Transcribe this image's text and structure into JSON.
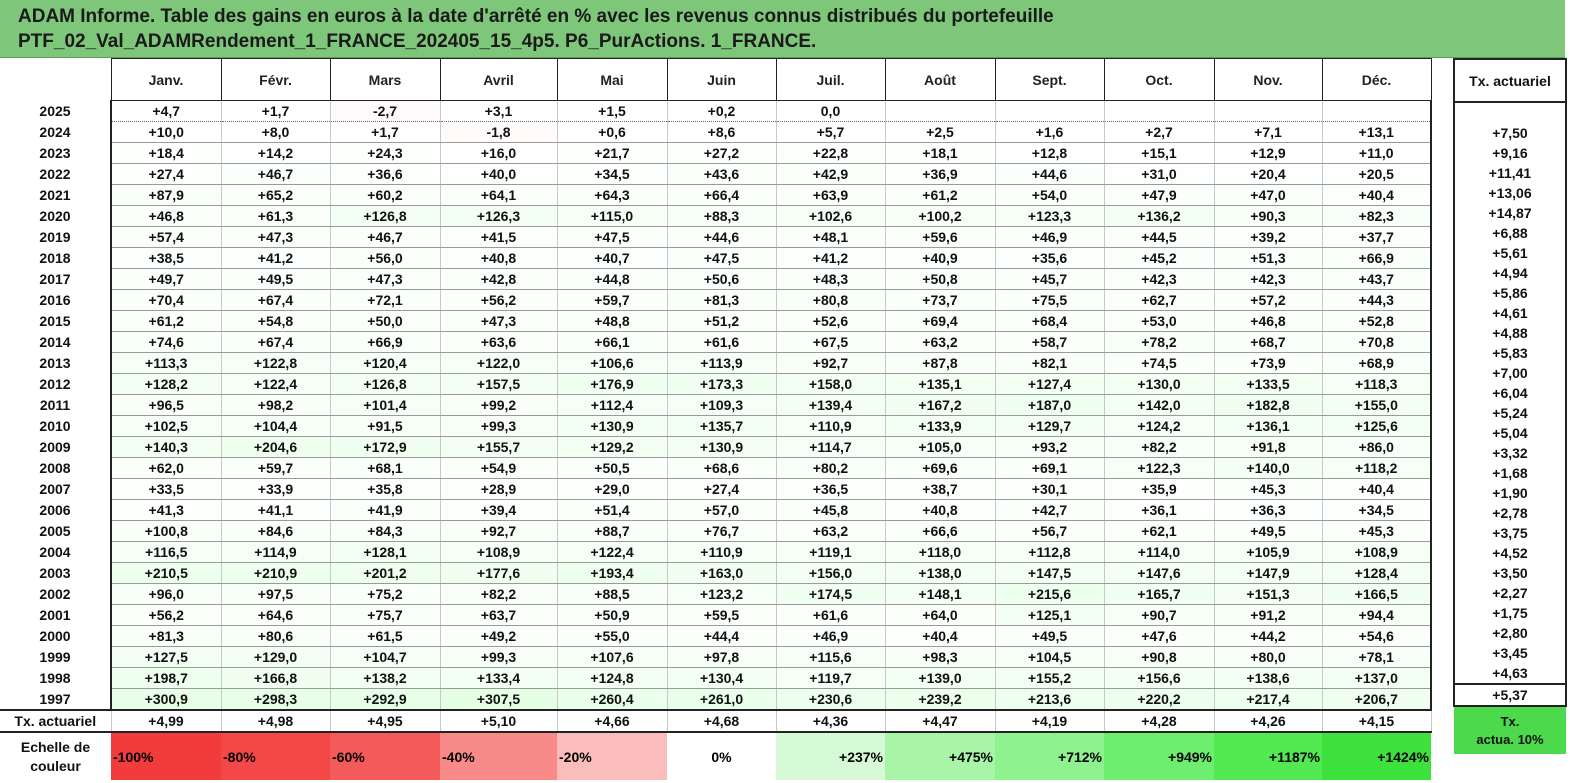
{
  "title": {
    "line1": "ADAM Informe. Table des gains en euros à la date d'arrêté en % avec les revenus connus distribués du portefeuille",
    "line2": "PTF_02_Val_ADAMRendement_1_FRANCE_202405_15_4p5. P6_PurActions. 1_FRANCE."
  },
  "chart_data": {
    "type": "table",
    "months": [
      "Janv.",
      "Févr.",
      "Mars",
      "Avril",
      "Mai",
      "Juin",
      "Juil.",
      "Août",
      "Sept.",
      "Oct.",
      "Nov.",
      "Déc."
    ],
    "rate_header": "Tx. actuariel",
    "rows": [
      {
        "year": "2025",
        "values": [
          "+4,7",
          "+1,7",
          "-2,7",
          "+3,1",
          "+1,5",
          "+0,2",
          "0,0",
          "",
          "",
          "",
          "",
          ""
        ],
        "rate": ""
      },
      {
        "year": "2024",
        "values": [
          "+10,0",
          "+8,0",
          "+1,7",
          "-1,8",
          "+0,6",
          "+8,6",
          "+5,7",
          "+2,5",
          "+1,6",
          "+2,7",
          "+7,1",
          "+13,1"
        ],
        "rate": "+7,50"
      },
      {
        "year": "2023",
        "values": [
          "+18,4",
          "+14,2",
          "+24,3",
          "+16,0",
          "+21,7",
          "+27,2",
          "+22,8",
          "+18,1",
          "+12,8",
          "+15,1",
          "+12,9",
          "+11,0"
        ],
        "rate": "+9,16"
      },
      {
        "year": "2022",
        "values": [
          "+27,4",
          "+46,7",
          "+36,6",
          "+40,0",
          "+34,5",
          "+43,6",
          "+42,9",
          "+36,9",
          "+44,6",
          "+31,0",
          "+20,4",
          "+20,5"
        ],
        "rate": "+11,41"
      },
      {
        "year": "2021",
        "values": [
          "+87,9",
          "+65,2",
          "+60,2",
          "+64,1",
          "+64,3",
          "+66,4",
          "+63,9",
          "+61,2",
          "+54,0",
          "+47,9",
          "+47,0",
          "+40,4"
        ],
        "rate": "+13,06"
      },
      {
        "year": "2020",
        "values": [
          "+46,8",
          "+61,3",
          "+126,8",
          "+126,3",
          "+115,0",
          "+88,3",
          "+102,6",
          "+100,2",
          "+123,3",
          "+136,2",
          "+90,3",
          "+82,3"
        ],
        "rate": "+14,87"
      },
      {
        "year": "2019",
        "values": [
          "+57,4",
          "+47,3",
          "+46,7",
          "+41,5",
          "+47,5",
          "+44,6",
          "+48,1",
          "+59,6",
          "+46,9",
          "+44,5",
          "+39,2",
          "+37,7"
        ],
        "rate": "+6,88"
      },
      {
        "year": "2018",
        "values": [
          "+38,5",
          "+41,2",
          "+56,0",
          "+40,8",
          "+40,7",
          "+47,5",
          "+41,2",
          "+40,9",
          "+35,6",
          "+45,2",
          "+51,3",
          "+66,9"
        ],
        "rate": "+5,61"
      },
      {
        "year": "2017",
        "values": [
          "+49,7",
          "+49,5",
          "+47,3",
          "+42,8",
          "+44,8",
          "+50,6",
          "+48,3",
          "+50,8",
          "+45,7",
          "+42,3",
          "+42,3",
          "+43,7"
        ],
        "rate": "+4,94"
      },
      {
        "year": "2016",
        "values": [
          "+70,4",
          "+67,4",
          "+72,1",
          "+56,2",
          "+59,7",
          "+81,3",
          "+80,8",
          "+73,7",
          "+75,5",
          "+62,7",
          "+57,2",
          "+44,3"
        ],
        "rate": "+5,86"
      },
      {
        "year": "2015",
        "values": [
          "+61,2",
          "+54,8",
          "+50,0",
          "+47,3",
          "+48,8",
          "+51,2",
          "+52,6",
          "+69,4",
          "+68,4",
          "+53,0",
          "+46,8",
          "+52,8"
        ],
        "rate": "+4,61"
      },
      {
        "year": "2014",
        "values": [
          "+74,6",
          "+67,4",
          "+66,9",
          "+63,6",
          "+66,1",
          "+61,6",
          "+67,5",
          "+63,2",
          "+58,7",
          "+78,2",
          "+68,7",
          "+70,8"
        ],
        "rate": "+4,88"
      },
      {
        "year": "2013",
        "values": [
          "+113,3",
          "+122,8",
          "+120,4",
          "+122,0",
          "+106,6",
          "+113,9",
          "+92,7",
          "+87,8",
          "+82,1",
          "+74,5",
          "+73,9",
          "+68,9"
        ],
        "rate": "+5,83"
      },
      {
        "year": "2012",
        "values": [
          "+128,2",
          "+122,4",
          "+126,8",
          "+157,5",
          "+176,9",
          "+173,3",
          "+158,0",
          "+135,1",
          "+127,4",
          "+130,0",
          "+133,5",
          "+118,3"
        ],
        "rate": "+7,00"
      },
      {
        "year": "2011",
        "values": [
          "+96,5",
          "+98,2",
          "+101,4",
          "+99,2",
          "+112,4",
          "+109,3",
          "+139,4",
          "+167,2",
          "+187,0",
          "+142,0",
          "+182,8",
          "+155,0"
        ],
        "rate": "+6,04"
      },
      {
        "year": "2010",
        "values": [
          "+102,5",
          "+104,4",
          "+91,5",
          "+99,3",
          "+130,9",
          "+135,7",
          "+110,9",
          "+133,9",
          "+129,7",
          "+124,2",
          "+136,1",
          "+125,6"
        ],
        "rate": "+5,24"
      },
      {
        "year": "2009",
        "values": [
          "+140,3",
          "+204,6",
          "+172,9",
          "+155,7",
          "+129,2",
          "+130,9",
          "+114,7",
          "+105,0",
          "+93,2",
          "+82,2",
          "+91,8",
          "+86,0"
        ],
        "rate": "+5,04"
      },
      {
        "year": "2008",
        "values": [
          "+62,0",
          "+59,7",
          "+68,1",
          "+54,9",
          "+50,5",
          "+68,6",
          "+80,2",
          "+69,6",
          "+69,1",
          "+122,3",
          "+140,0",
          "+118,2"
        ],
        "rate": "+3,32"
      },
      {
        "year": "2007",
        "values": [
          "+33,5",
          "+33,9",
          "+35,8",
          "+28,9",
          "+29,0",
          "+27,4",
          "+36,5",
          "+38,7",
          "+30,1",
          "+35,9",
          "+45,3",
          "+40,4"
        ],
        "rate": "+1,68"
      },
      {
        "year": "2006",
        "values": [
          "+41,3",
          "+41,1",
          "+41,9",
          "+39,4",
          "+51,4",
          "+57,0",
          "+45,8",
          "+40,8",
          "+42,7",
          "+36,1",
          "+36,3",
          "+34,5"
        ],
        "rate": "+1,90"
      },
      {
        "year": "2005",
        "values": [
          "+100,8",
          "+84,6",
          "+84,3",
          "+92,7",
          "+88,7",
          "+76,7",
          "+63,2",
          "+66,6",
          "+56,7",
          "+62,1",
          "+49,5",
          "+45,3"
        ],
        "rate": "+2,78"
      },
      {
        "year": "2004",
        "values": [
          "+116,5",
          "+114,9",
          "+128,1",
          "+108,9",
          "+122,4",
          "+110,9",
          "+119,1",
          "+118,0",
          "+112,8",
          "+114,0",
          "+105,9",
          "+108,9"
        ],
        "rate": "+3,75"
      },
      {
        "year": "2003",
        "values": [
          "+210,5",
          "+210,9",
          "+201,2",
          "+177,6",
          "+193,4",
          "+163,0",
          "+156,0",
          "+138,0",
          "+147,5",
          "+147,6",
          "+147,9",
          "+128,4"
        ],
        "rate": "+4,52"
      },
      {
        "year": "2002",
        "values": [
          "+96,0",
          "+97,5",
          "+75,2",
          "+82,2",
          "+88,5",
          "+123,2",
          "+174,5",
          "+148,1",
          "+215,6",
          "+165,7",
          "+151,3",
          "+166,5"
        ],
        "rate": "+3,50"
      },
      {
        "year": "2001",
        "values": [
          "+56,2",
          "+64,6",
          "+75,7",
          "+63,7",
          "+50,9",
          "+59,5",
          "+61,6",
          "+64,0",
          "+125,1",
          "+90,7",
          "+91,2",
          "+94,4"
        ],
        "rate": "+2,27"
      },
      {
        "year": "2000",
        "values": [
          "+81,3",
          "+80,6",
          "+61,5",
          "+49,2",
          "+55,0",
          "+44,4",
          "+46,9",
          "+40,4",
          "+49,5",
          "+47,6",
          "+44,2",
          "+54,6"
        ],
        "rate": "+1,75"
      },
      {
        "year": "1999",
        "values": [
          "+127,5",
          "+129,0",
          "+104,7",
          "+99,3",
          "+107,6",
          "+97,8",
          "+115,6",
          "+98,3",
          "+104,5",
          "+90,8",
          "+80,0",
          "+78,1"
        ],
        "rate": "+2,80"
      },
      {
        "year": "1998",
        "values": [
          "+198,7",
          "+166,8",
          "+138,2",
          "+133,4",
          "+124,8",
          "+130,4",
          "+119,7",
          "+139,0",
          "+155,2",
          "+156,6",
          "+138,6",
          "+137,0"
        ],
        "rate": "+3,45"
      },
      {
        "year": "1997",
        "values": [
          "+300,9",
          "+298,3",
          "+292,9",
          "+307,5",
          "+260,4",
          "+261,0",
          "+230,6",
          "+239,2",
          "+213,6",
          "+220,2",
          "+217,4",
          "+206,7"
        ],
        "rate": "+4,63"
      }
    ],
    "footer": {
      "label": "Tx. actuariel",
      "values": [
        "+4,99",
        "+4,98",
        "+4,95",
        "+5,10",
        "+4,66",
        "+4,68",
        "+4,36",
        "+4,47",
        "+4,19",
        "+4,28",
        "+4,26",
        "+4,15"
      ],
      "rate": "+5,37"
    },
    "color_scale": {
      "label_line1": "Echelle de",
      "label_line2": "couleur",
      "steps": [
        {
          "label": "-100%",
          "color": "#f23c3c",
          "align": "left"
        },
        {
          "label": "-80%",
          "color": "#f44848",
          "align": "left"
        },
        {
          "label": "-60%",
          "color": "#f55a5a",
          "align": "left"
        },
        {
          "label": "-40%",
          "color": "#f88a8a",
          "align": "left"
        },
        {
          "label": "-20%",
          "color": "#fbbcbc",
          "align": "left"
        },
        {
          "label": "0%",
          "color": "#ffffff",
          "align": "center"
        },
        {
          "label": "+237%",
          "color": "#d6fad6",
          "align": "right"
        },
        {
          "label": "+475%",
          "color": "#a8f5a8",
          "align": "right"
        },
        {
          "label": "+712%",
          "color": "#8ef28e",
          "align": "right"
        },
        {
          "label": "+949%",
          "color": "#6eee6e",
          "align": "right"
        },
        {
          "label": "+1187%",
          "color": "#52e952",
          "align": "right"
        },
        {
          "label": "+1424%",
          "color": "#3de23d",
          "align": "right"
        }
      ],
      "rate_line1": "Tx.",
      "rate_line2": "actua. 10%",
      "rate_color": "#4cd94c"
    },
    "title_color": "#7dc67a"
  }
}
